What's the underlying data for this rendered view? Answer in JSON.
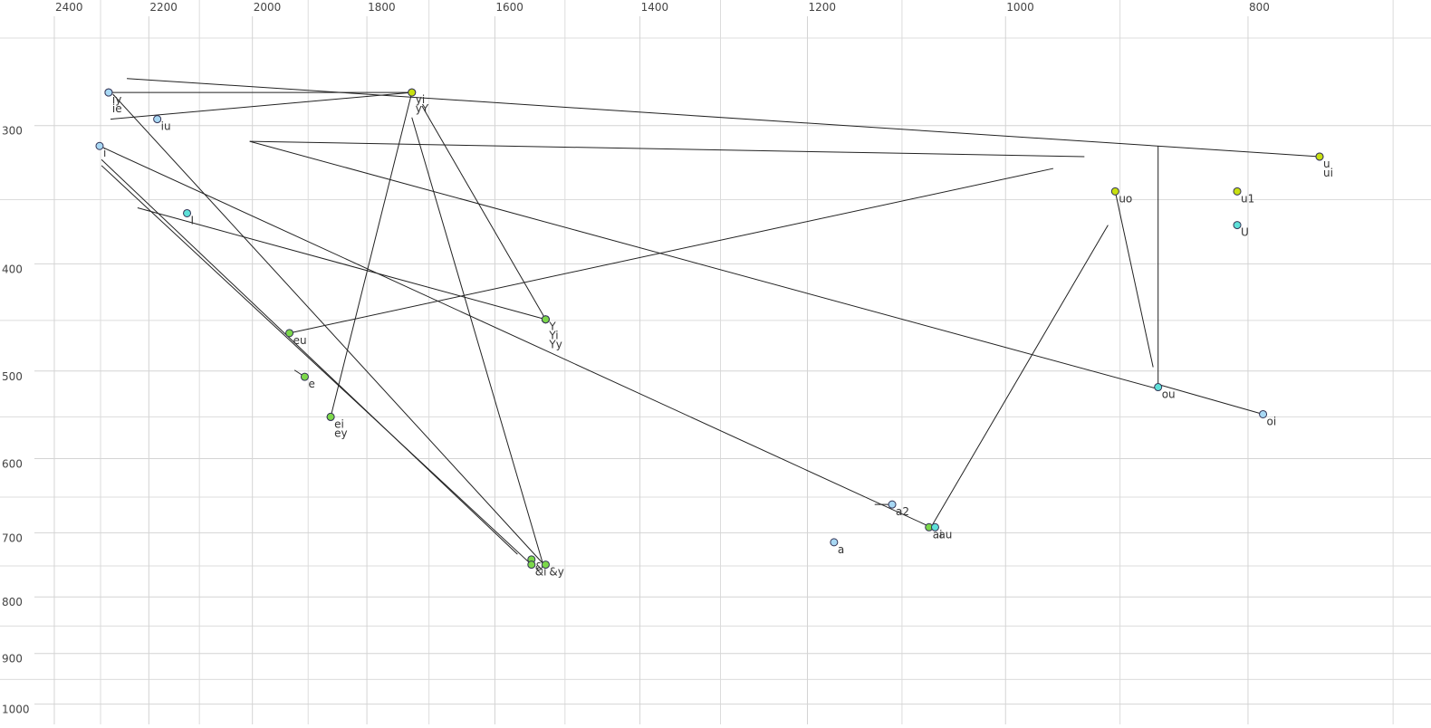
{
  "chart_data": {
    "type": "vowel-plot",
    "log_scale": true,
    "grid": true,
    "xlim": [
      2523,
      676
    ],
    "ylim": [
      231,
      1043
    ],
    "xticks": [
      2400,
      2200,
      2000,
      1800,
      1600,
      1400,
      1200,
      1000,
      800
    ],
    "xminorticks": [
      2300,
      2100,
      1900,
      1700,
      1500,
      1300,
      1100,
      900,
      700
    ],
    "yticks": [
      300,
      400,
      500,
      600,
      700,
      800,
      900,
      1000
    ],
    "yminorticks": [
      250,
      350,
      450,
      550,
      650,
      750,
      850,
      950
    ],
    "points": [
      {
        "label": "iy",
        "x": 2283,
        "y": 280,
        "color": "#a8d8f4"
      },
      {
        "label": "ie",
        "x": 2283,
        "y": 280,
        "color": "#a8d8f4"
      },
      {
        "label": "yi",
        "x": 1727,
        "y": 280,
        "color": "#c8e010"
      },
      {
        "label": "yY",
        "x": 1727,
        "y": 280,
        "color": "#c8e010"
      },
      {
        "label": "iu",
        "x": 2183,
        "y": 296,
        "color": "#a8d8f4"
      },
      {
        "label": "i",
        "x": 2302,
        "y": 313,
        "color": "#a8d8f4"
      },
      {
        "label": "u",
        "x": 749,
        "y": 320,
        "color": "#c8e010"
      },
      {
        "label": "ui",
        "x": 749,
        "y": 320,
        "color": "#c8e010"
      },
      {
        "label": "uo",
        "x": 904,
        "y": 344,
        "color": "#c8e010"
      },
      {
        "label": "u1",
        "x": 808,
        "y": 344,
        "color": "#c8e010"
      },
      {
        "label": "U",
        "x": 808,
        "y": 369,
        "color": "#5ee0d8"
      },
      {
        "label": "I",
        "x": 2124,
        "y": 360,
        "color": "#5ee0d8"
      },
      {
        "label": "Y",
        "x": 1527,
        "y": 449,
        "color": "#7cd84a"
      },
      {
        "label": "Yi",
        "x": 1527,
        "y": 449,
        "color": "#7cd84a"
      },
      {
        "label": "Yy",
        "x": 1527,
        "y": 449,
        "color": "#7cd84a"
      },
      {
        "label": "eu",
        "x": 1933,
        "y": 462,
        "color": "#7cd84a"
      },
      {
        "label": "e",
        "x": 1906,
        "y": 506,
        "color": "#7cd84a"
      },
      {
        "label": "ei",
        "x": 1861,
        "y": 550,
        "color": "#7cd84a"
      },
      {
        "label": "ey",
        "x": 1861,
        "y": 550,
        "color": "#7cd84a"
      },
      {
        "label": "ou",
        "x": 869,
        "y": 517,
        "color": "#5ee0d8"
      },
      {
        "label": "oi",
        "x": 789,
        "y": 547,
        "color": "#a8d8f4"
      },
      {
        "label": "a2",
        "x": 1110,
        "y": 660,
        "color": "#a8d8f4"
      },
      {
        "label": "ai",
        "x": 1073,
        "y": 692,
        "color": "#7cd84a"
      },
      {
        "label": "au",
        "x": 1067,
        "y": 692,
        "color": "#5ee0d8"
      },
      {
        "label": "a",
        "x": 1171,
        "y": 714,
        "color": "#a8d8f4"
      },
      {
        "label": "&",
        "x": 1547,
        "y": 740,
        "color": "#7cd84a"
      },
      {
        "label": "&i",
        "x": 1547,
        "y": 748,
        "color": "#7cd84a"
      },
      {
        "label": "&y",
        "x": 1527,
        "y": 748,
        "color": "#7cd84a"
      }
    ],
    "segments": [
      {
        "x": [
          2245,
          749
        ],
        "y": [
          272,
          320
        ]
      },
      {
        "x": [
          2283,
          1727
        ],
        "y": [
          280,
          280
        ]
      },
      {
        "x": [
          2279,
          1727
        ],
        "y": [
          296,
          280
        ]
      },
      {
        "x": [
          2005,
          930
        ],
        "y": [
          310,
          320
        ]
      },
      {
        "x": [
          2274,
          1531
        ],
        "y": [
          281,
          746
        ]
      },
      {
        "x": [
          2302,
          1071
        ],
        "y": [
          313,
          692
        ]
      },
      {
        "x": [
          2005,
          869
        ],
        "y": [
          310,
          519
        ]
      },
      {
        "x": [
          2223,
          1527
        ],
        "y": [
          356,
          449
        ]
      },
      {
        "x": [
          2298,
          1567
        ],
        "y": [
          322,
          732
        ]
      },
      {
        "x": [
          2298,
          1547
        ],
        "y": [
          326,
          748
        ]
      },
      {
        "x": [
          1933,
          957
        ],
        "y": [
          462,
          328
        ]
      },
      {
        "x": [
          1861,
          1727
        ],
        "y": [
          550,
          280
        ]
      },
      {
        "x": [
          1727,
          1531
        ],
        "y": [
          295,
          746
        ]
      },
      {
        "x": [
          1711,
          1527
        ],
        "y": [
          288,
          449
        ]
      },
      {
        "x": [
          904,
          873
        ],
        "y": [
          344,
          496
        ]
      },
      {
        "x": [
          869,
          869
        ],
        "y": [
          313,
          514
        ]
      },
      {
        "x": [
          910,
          1071
        ],
        "y": [
          369,
          692
        ]
      },
      {
        "x": [
          869,
          789
        ],
        "y": [
          514,
          547
        ]
      },
      {
        "x": [
          1128,
          1110
        ],
        "y": [
          660,
          660
        ]
      },
      {
        "x": [
          1924,
          1906
        ],
        "y": [
          499,
          506
        ]
      }
    ]
  }
}
